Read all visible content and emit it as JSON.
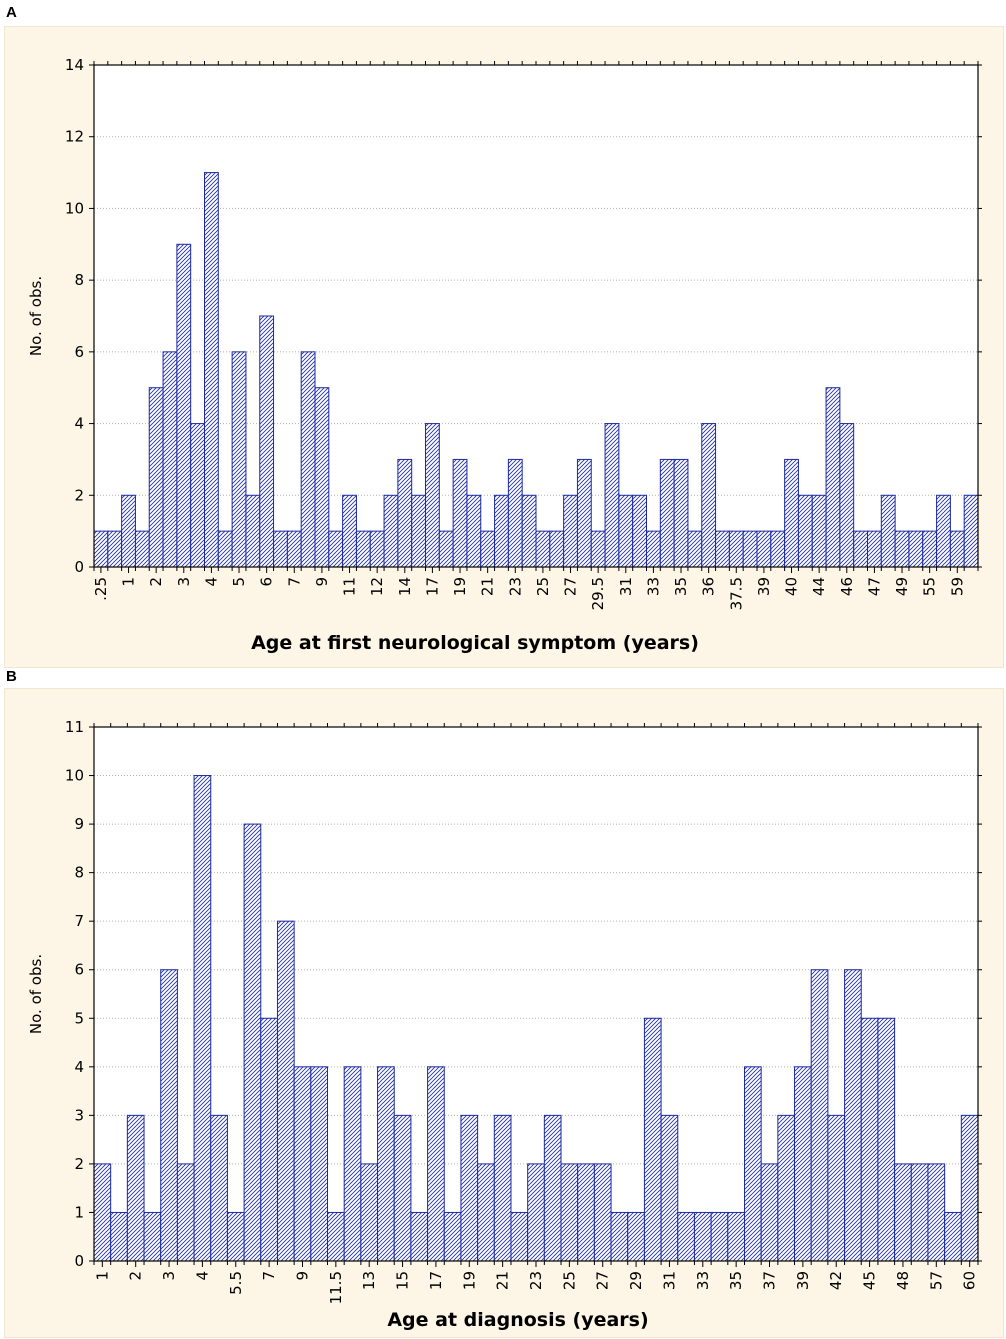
{
  "figure": {
    "panel_a_letter": "A",
    "panel_b_letter": "B"
  },
  "colors": {
    "bar_stroke": "#1c2a9e",
    "panel_bg": "#fdf5e6",
    "plot_bg": "#ffffff",
    "grid": "#b0b0b0"
  },
  "chart_data": [
    {
      "type": "bar",
      "panel": "A",
      "xlabel": "Age at first neurological symptom (years)",
      "ylabel": "No. of obs.",
      "ylim": [
        0,
        14
      ],
      "yticks": [
        0,
        2,
        4,
        6,
        8,
        10,
        12,
        14
      ],
      "grid": true,
      "values": [
        1,
        1,
        2,
        1,
        5,
        6,
        9,
        4,
        11,
        1,
        6,
        2,
        7,
        1,
        1,
        6,
        5,
        1,
        2,
        1,
        1,
        2,
        3,
        2,
        4,
        1,
        3,
        2,
        1,
        2,
        3,
        2,
        1,
        1,
        2,
        3,
        1,
        4,
        2,
        2,
        1,
        3,
        3,
        1,
        4,
        1,
        1,
        1,
        1,
        1,
        3,
        2,
        2,
        5,
        4,
        1,
        1,
        2,
        1,
        1,
        1,
        2,
        1,
        2
      ],
      "xtick_labels": [
        ".25",
        "1",
        "2",
        "3",
        "4",
        "5",
        "6",
        "7",
        "9",
        "11",
        "12",
        "14",
        "17",
        "19",
        "21",
        "23",
        "25",
        "27",
        "29.5",
        "31",
        "33",
        "35",
        "36",
        "37.5",
        "39",
        "40",
        "44",
        "46",
        "47",
        "49",
        "55",
        "59"
      ]
    },
    {
      "type": "bar",
      "panel": "B",
      "xlabel": "Age at diagnosis (years)",
      "ylabel": "No. of obs.",
      "ylim": [
        0,
        11
      ],
      "yticks": [
        0,
        1,
        2,
        3,
        4,
        5,
        6,
        7,
        8,
        9,
        10,
        11
      ],
      "grid": true,
      "values": [
        2,
        1,
        3,
        1,
        6,
        2,
        10,
        3,
        1,
        9,
        5,
        7,
        4,
        4,
        1,
        4,
        2,
        4,
        3,
        1,
        4,
        1,
        3,
        2,
        3,
        1,
        2,
        3,
        2,
        2,
        2,
        1,
        1,
        5,
        3,
        1,
        1,
        1,
        1,
        4,
        2,
        3,
        4,
        6,
        3,
        6,
        5,
        5,
        2,
        2,
        2,
        1,
        3
      ],
      "xtick_labels": [
        "1",
        "2",
        "3",
        "4",
        "5.5",
        "7",
        "9",
        "11.5",
        "13",
        "15",
        "17",
        "19",
        "21",
        "23",
        "25",
        "27",
        "29",
        "31",
        "33",
        "35",
        "37",
        "39",
        "42",
        "45",
        "48",
        "57",
        "60"
      ]
    }
  ]
}
